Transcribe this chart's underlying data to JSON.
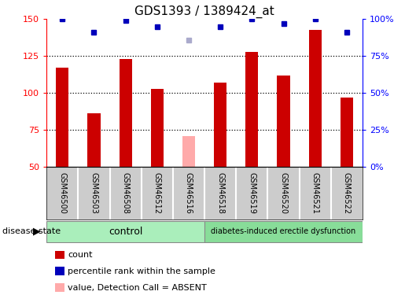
{
  "title": "GDS1393 / 1389424_at",
  "samples": [
    "GSM46500",
    "GSM46503",
    "GSM46508",
    "GSM46512",
    "GSM46516",
    "GSM46518",
    "GSM46519",
    "GSM46520",
    "GSM46521",
    "GSM46522"
  ],
  "count_values": [
    117,
    86,
    123,
    103,
    null,
    107,
    128,
    112,
    143,
    97
  ],
  "count_absent": [
    null,
    null,
    null,
    null,
    71,
    null,
    null,
    null,
    null,
    null
  ],
  "percentile_values": [
    100,
    91,
    99,
    95,
    null,
    95,
    100,
    97,
    100,
    91
  ],
  "percentile_absent": [
    null,
    null,
    null,
    null,
    86,
    null,
    null,
    null,
    null,
    null
  ],
  "control_group": [
    "GSM46500",
    "GSM46503",
    "GSM46508",
    "GSM46512",
    "GSM46516"
  ],
  "disease_group": [
    "GSM46518",
    "GSM46519",
    "GSM46520",
    "GSM46521",
    "GSM46522"
  ],
  "ylim_left": [
    50,
    150
  ],
  "ylim_right": [
    0,
    100
  ],
  "yticks_left": [
    50,
    75,
    100,
    125,
    150
  ],
  "yticks_right": [
    0,
    25,
    50,
    75,
    100
  ],
  "ytick_labels_right": [
    "0%",
    "25%",
    "50%",
    "75%",
    "100%"
  ],
  "bar_color_red": "#cc0000",
  "bar_color_pink": "#ffaaaa",
  "bar_color_blue": "#0000bb",
  "bar_color_blue_light": "#aaaacc",
  "bar_width": 0.4,
  "control_bg": "#aaeebb",
  "disease_bg": "#88dd99",
  "label_bg": "#cccccc",
  "legend_items": [
    {
      "color": "#cc0000",
      "label": "count"
    },
    {
      "color": "#0000bb",
      "label": "percentile rank within the sample"
    },
    {
      "color": "#ffaaaa",
      "label": "value, Detection Call = ABSENT"
    },
    {
      "color": "#aaaacc",
      "label": "rank, Detection Call = ABSENT"
    }
  ],
  "disease_state_label": "disease state",
  "control_label": "control",
  "disease_label": "diabetes-induced erectile dysfunction"
}
